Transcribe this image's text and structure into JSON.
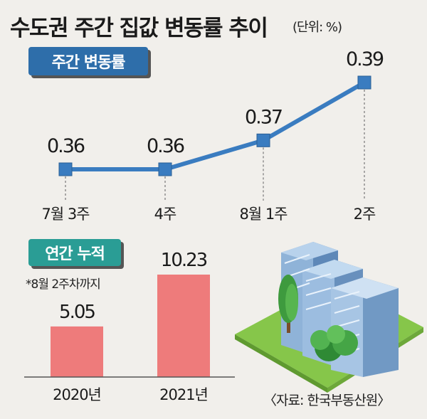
{
  "header": {
    "title": "수도권 주간 집값 변동률 추이",
    "unit": "(단위: %)"
  },
  "weekly": {
    "badge": "주간 변동률"
  },
  "annual": {
    "badge": "연간 누적",
    "note": "*8월 2주차까지"
  },
  "footer": {
    "source": "〈자료: 한국부동산원〉"
  },
  "colors": {
    "line": "#3a7cc0",
    "marker": "#3a7cc0",
    "bar": "#ee7b7b",
    "weekly_badge": "#2e6eaa",
    "annual_badge": "#2a9d95",
    "background": "#f1efeb"
  },
  "chart_data": [
    {
      "type": "line",
      "categories": [
        "7월 3주",
        "4주",
        "8월 1주",
        "2주"
      ],
      "values": [
        0.36,
        0.36,
        0.37,
        0.39
      ],
      "value_labels": [
        "0.36",
        "0.36",
        "0.37",
        "0.39"
      ],
      "title": "주간 변동률",
      "ylim": [
        0.355,
        0.395
      ],
      "grid": false,
      "legend": "none"
    },
    {
      "type": "bar",
      "categories": [
        "2020년",
        "2021년"
      ],
      "values": [
        5.05,
        10.23
      ],
      "value_labels": [
        "5.05",
        "10.23"
      ],
      "title": "연간 누적",
      "ylim": [
        0,
        10.23
      ],
      "grid": false,
      "legend": "none"
    }
  ]
}
